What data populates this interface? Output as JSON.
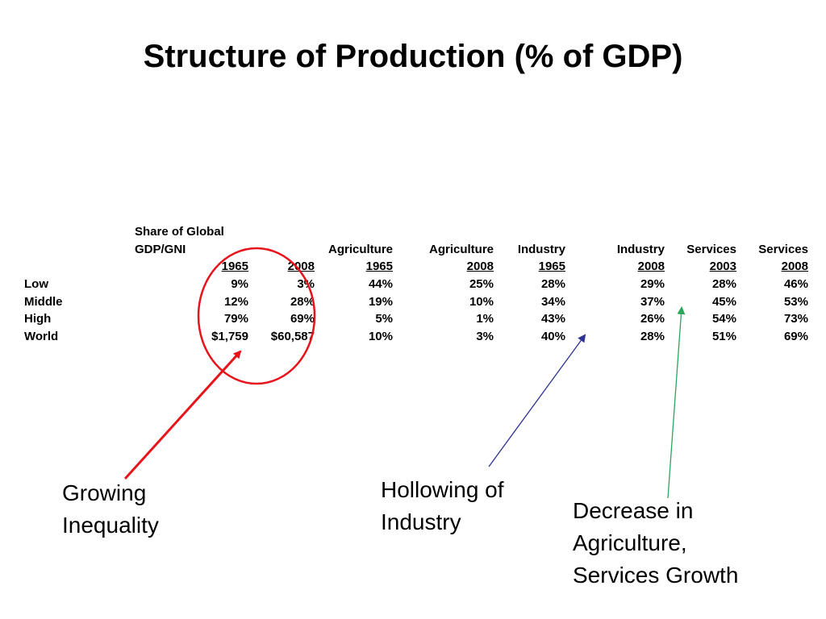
{
  "title": "Structure of Production (% of GDP)",
  "table": {
    "share_header_line1": "Share of Global",
    "share_header_line2": "GDP/GNI",
    "column_headers": [
      "",
      "",
      "Agriculture",
      "Agriculture",
      "Industry",
      "Industry",
      "Services",
      "Services"
    ],
    "years": [
      "1965",
      "2008",
      "1965",
      "2008",
      "1965",
      "2008",
      "2003",
      "2008"
    ],
    "rows": [
      {
        "label": "Low",
        "values": [
          "9%",
          "3%",
          "44%",
          "25%",
          "28%",
          "29%",
          "28%",
          "46%"
        ]
      },
      {
        "label": "Middle",
        "values": [
          "12%",
          "28%",
          "19%",
          "10%",
          "34%",
          "37%",
          "45%",
          "53%"
        ]
      },
      {
        "label": "High",
        "values": [
          "79%",
          "69%",
          "5%",
          "1%",
          "43%",
          "26%",
          "54%",
          "73%"
        ]
      },
      {
        "label": "World",
        "values": [
          "$1,759",
          "$60,587",
          "10%",
          "3%",
          "40%",
          "28%",
          "51%",
          "69%"
        ]
      }
    ]
  },
  "annotations": {
    "inequality": "Growing\nInequality",
    "industry": "Hollowing of\nIndustry",
    "agriculture": "Decrease in\nAgriculture,\nServices Growth"
  },
  "colors": {
    "inequality_marker": "#e8141c",
    "industry_arrow": "#2e3192",
    "services_arrow": "#2aa65a"
  }
}
